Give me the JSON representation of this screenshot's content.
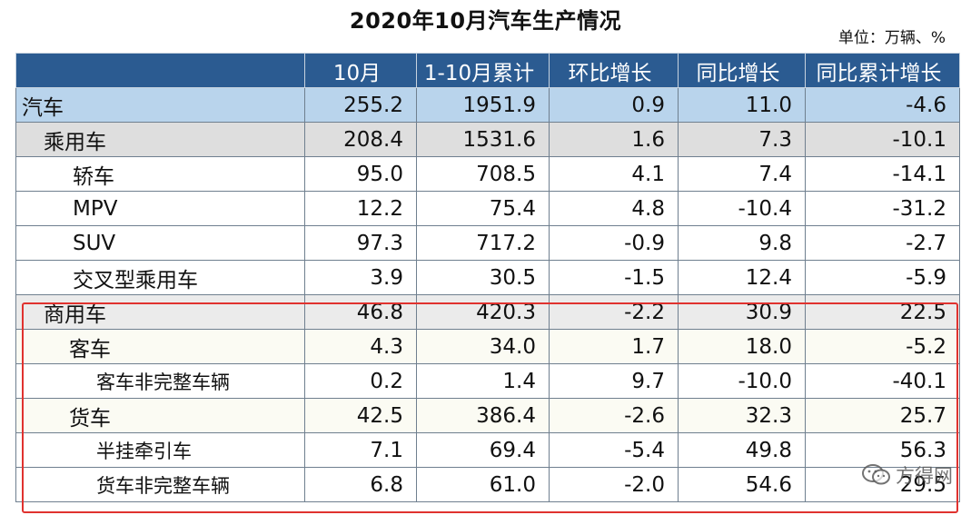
{
  "title": "2020年10月汽车生产情况",
  "unit": "单位：万辆、%",
  "headers": [
    "",
    "10月",
    "1-10月累计",
    "环比增长",
    "同比增长",
    "同比累计增长"
  ],
  "rows": [
    {
      "label": "汽车",
      "values": [
        "255.2",
        "1951.9",
        "0.9",
        "11.0",
        "-4.6"
      ]
    },
    {
      "label": "乘用车",
      "values": [
        "208.4",
        "1531.6",
        "1.6",
        "7.3",
        "-10.1"
      ]
    },
    {
      "label": "轿车",
      "values": [
        "95.0",
        "708.5",
        "4.1",
        "7.4",
        "-14.1"
      ]
    },
    {
      "label": "MPV",
      "values": [
        "12.2",
        "75.4",
        "4.8",
        "-10.4",
        "-31.2"
      ]
    },
    {
      "label": "SUV",
      "values": [
        "97.3",
        "717.2",
        "-0.9",
        "9.8",
        "-2.7"
      ]
    },
    {
      "label": "交叉型乘用车",
      "values": [
        "3.9",
        "30.5",
        "-1.5",
        "12.4",
        "-5.9"
      ]
    },
    {
      "label": "商用车",
      "values": [
        "46.8",
        "420.3",
        "-2.2",
        "30.9",
        "22.5"
      ]
    },
    {
      "label": "客车",
      "values": [
        "4.3",
        "34.0",
        "1.7",
        "18.0",
        "-5.2"
      ]
    },
    {
      "label": "客车非完整车辆",
      "values": [
        "0.2",
        "1.4",
        "9.7",
        "-10.0",
        "-40.1"
      ]
    },
    {
      "label": "货车",
      "values": [
        "42.5",
        "386.4",
        "-2.6",
        "32.3",
        "25.7"
      ]
    },
    {
      "label": "半挂牵引车",
      "values": [
        "7.1",
        "69.4",
        "-5.4",
        "49.8",
        "56.3"
      ]
    },
    {
      "label": "货车非完整车辆",
      "values": [
        "6.8",
        "61.0",
        "-2.0",
        "54.6",
        "29.5"
      ]
    }
  ],
  "watermark": "方得网",
  "colors": {
    "header_bg": "#2b5b91",
    "total_row_bg": "#b9d4ec",
    "category_row_bg": "#dedede",
    "highlight_box": "#e0322f"
  }
}
